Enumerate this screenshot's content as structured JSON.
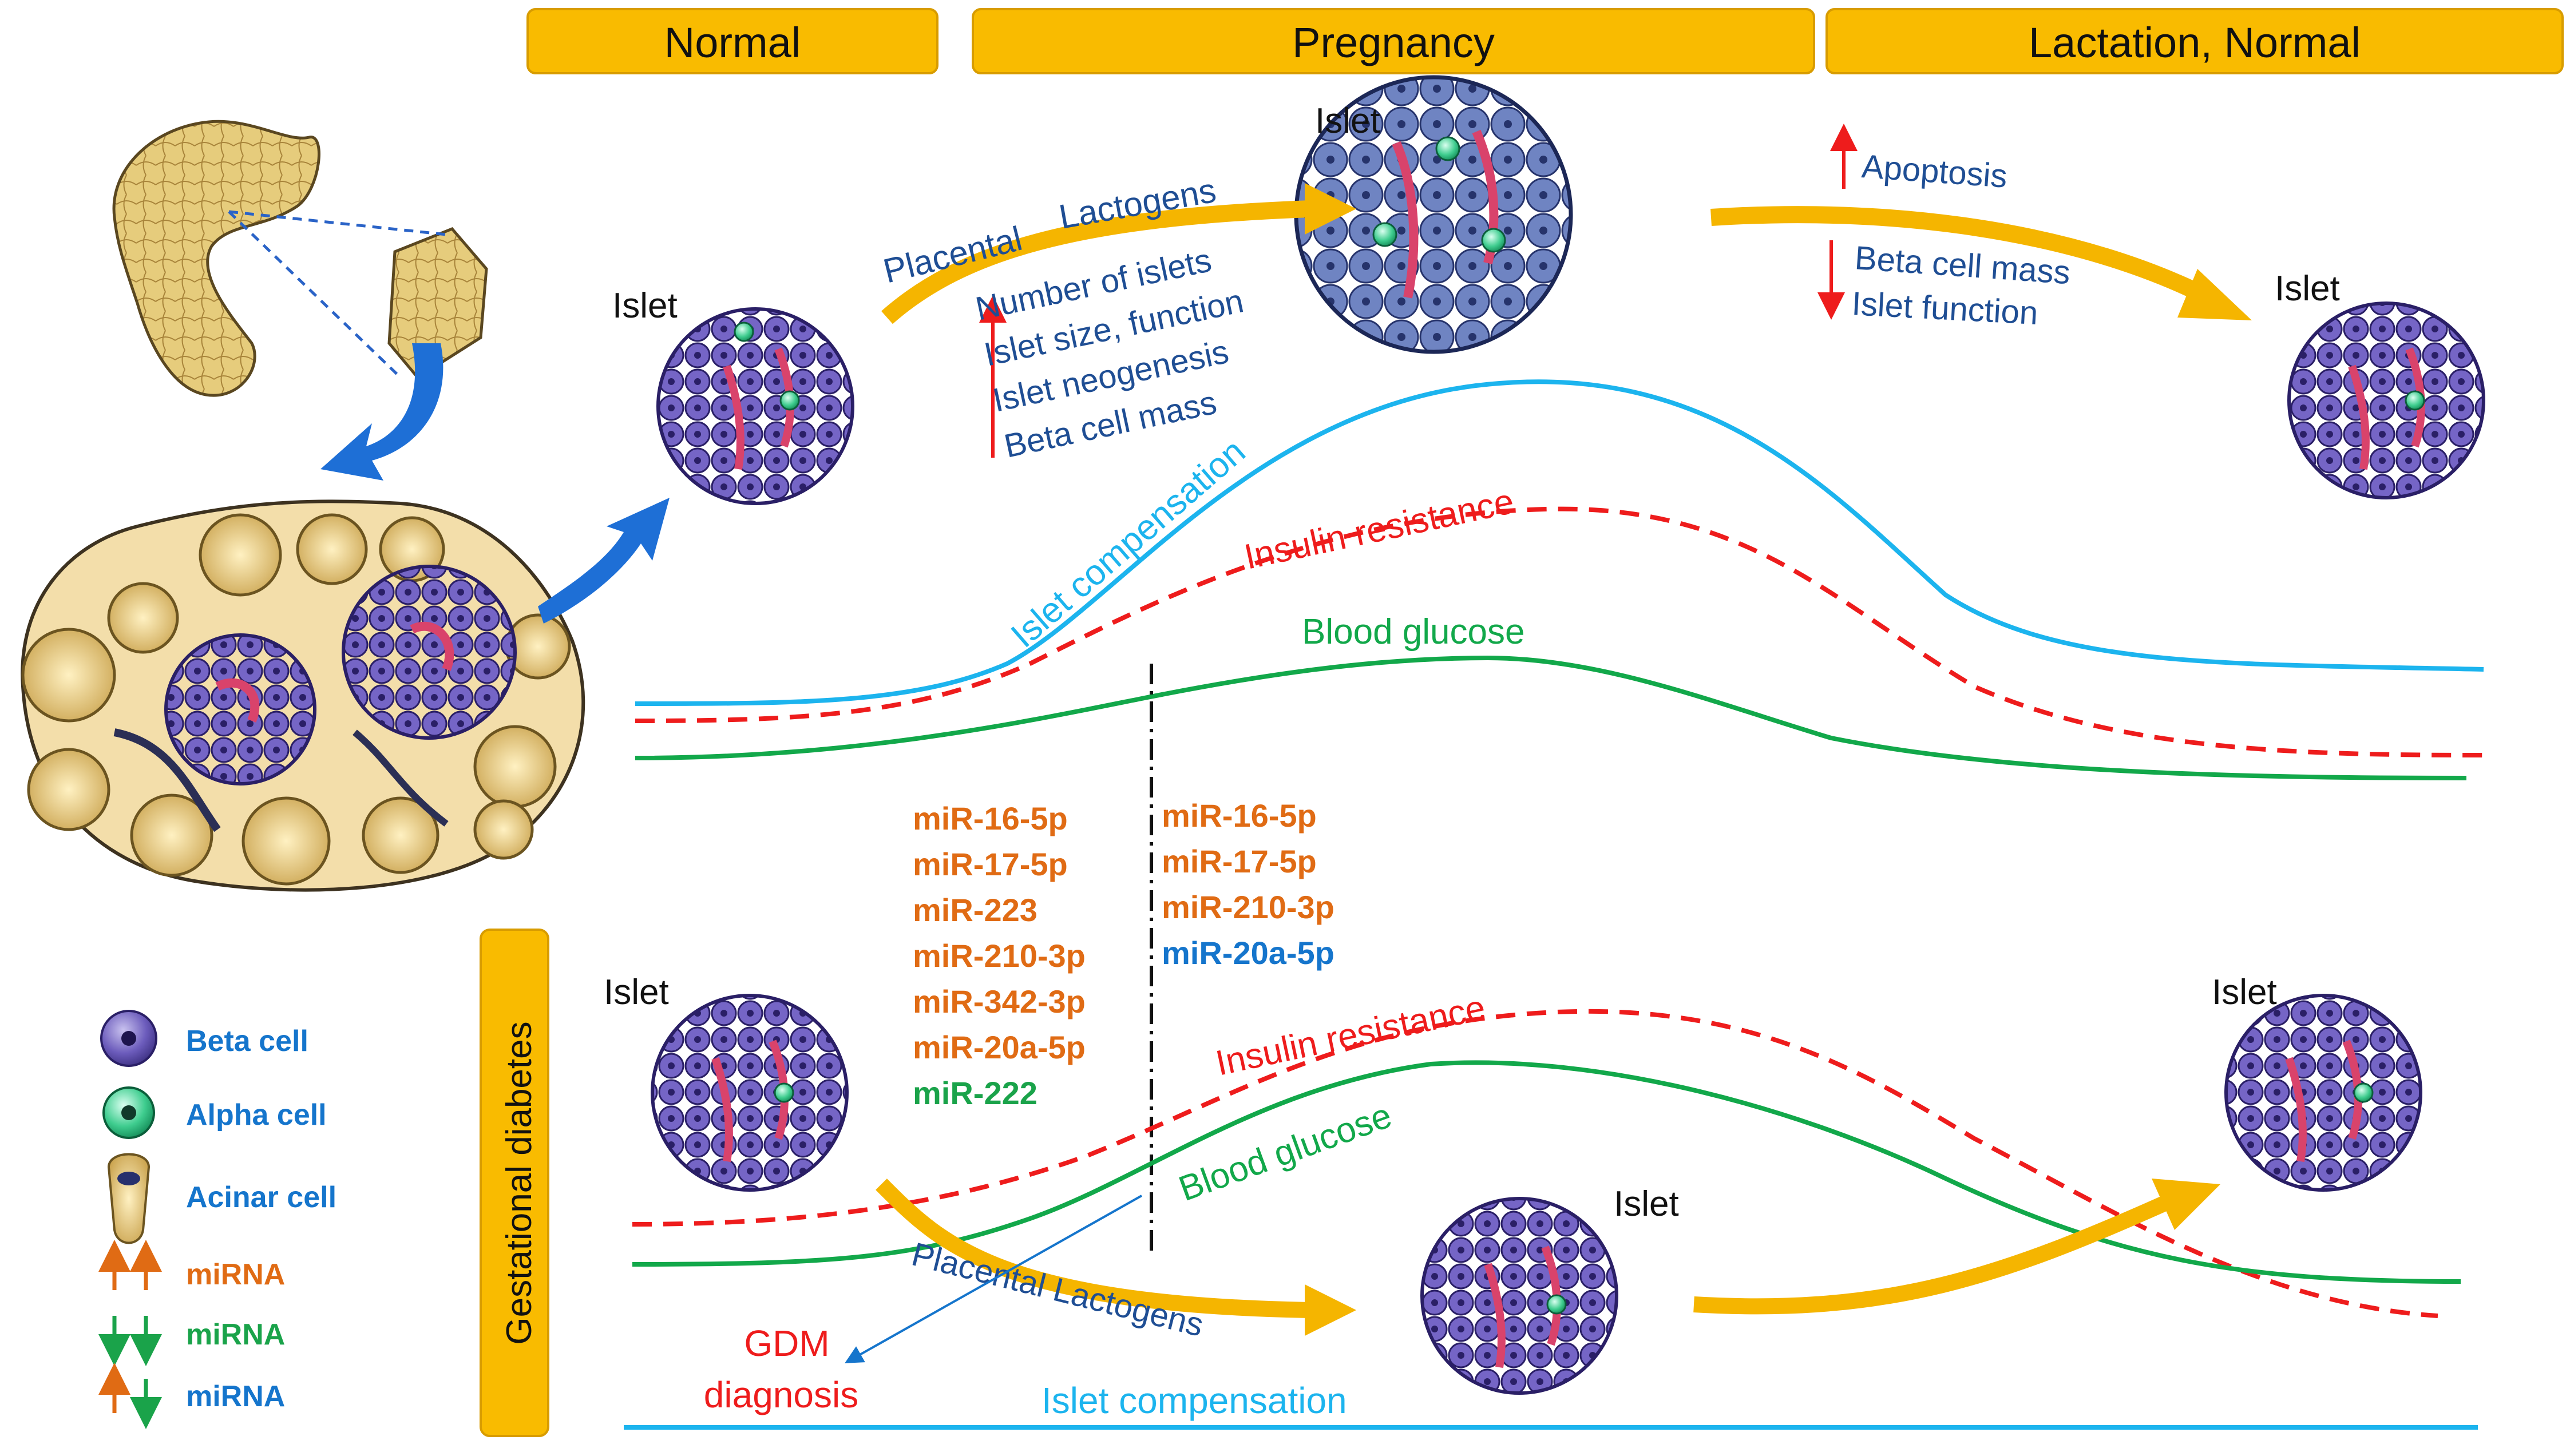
{
  "phases": {
    "normal": "Normal",
    "pregnancy": "Pregnancy",
    "lactation": "Lactation, Normal"
  },
  "gdm_panel_label": "Gestational diabetes",
  "islet_label": "Islet",
  "top_panel": {
    "placental_lactogens": [
      "Placental",
      "Lactogens"
    ],
    "increases": [
      "Number of islets",
      "Islet size, function",
      "Islet neogenesis",
      "Beta cell mass"
    ],
    "apoptosis": "Apoptosis",
    "decreases": [
      "Beta cell mass",
      "Islet function"
    ],
    "curves": {
      "islet_compensation": "Islet compensation",
      "insulin_resistance": "Insulin resistance",
      "blood_glucose": "Blood glucose"
    }
  },
  "mirna_left": {
    "up": [
      "miR-16-5p",
      "miR-17-5p",
      "miR-223",
      "miR-210-3p",
      "miR-342-3p",
      "miR-20a-5p"
    ],
    "down": [
      "miR-222"
    ]
  },
  "mirna_right": {
    "up": [
      "miR-16-5p",
      "miR-17-5p",
      "miR-210-3p"
    ],
    "mixed": [
      "miR-20a-5p"
    ]
  },
  "bottom_panel": {
    "insulin_resistance": "Insulin resistance",
    "blood_glucose": "Blood glucose",
    "placental_lactogens": "Placental Lactogens",
    "islet_compensation": "Islet compensation",
    "gdm_diagnosis": [
      "GDM",
      "diagnosis"
    ]
  },
  "legend": {
    "beta_cell": "Beta cell",
    "alpha_cell": "Alpha cell",
    "acinar_cell": "Acinar cell",
    "mirna_up": "miRNA",
    "mirna_down": "miRNA",
    "mirna_mixed": "miRNA"
  },
  "colors": {
    "phase_box": "#f9bb00",
    "compensation": "#1cb4ee",
    "resistance": "#ee1c1c",
    "glucose": "#12a84a",
    "navy_text": "#1f4e94",
    "orange_text": "#e06b14",
    "green_text": "#1aa34a",
    "blue_text": "#1575cc",
    "arrow": "#f5b500",
    "beta": "#6a5bb8",
    "alpha": "#3ec68a",
    "acinar": "#e0c270"
  }
}
